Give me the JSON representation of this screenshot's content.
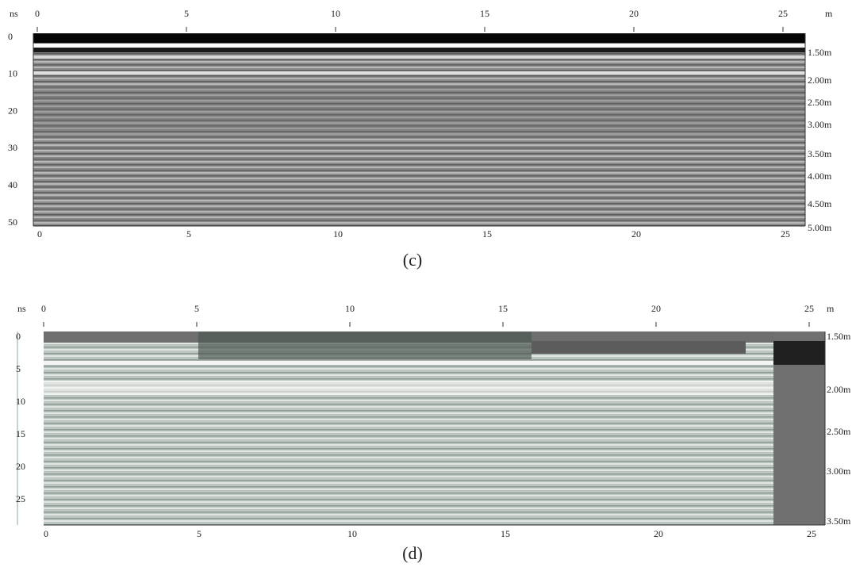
{
  "figures": [
    {
      "caption": "(c)",
      "y_unit": "ns",
      "x_unit": "m",
      "xticks": [
        0,
        5,
        10,
        15,
        20,
        25
      ],
      "yticks": [
        0,
        10,
        20,
        30,
        40,
        50
      ],
      "depth_labels": [
        "1.50m",
        "2.00m",
        "2.50m",
        "3.00m",
        "3.50m",
        "4.00m",
        "4.50m",
        "5.00m"
      ]
    },
    {
      "caption": "(d)",
      "y_unit": "ns",
      "x_unit": "m",
      "xticks": [
        0,
        5,
        10,
        15,
        20,
        25
      ],
      "yticks": [
        0,
        5,
        10,
        15,
        20,
        25
      ],
      "depth_labels": [
        "1.50m",
        "2.00m",
        "2.50m",
        "3.00m",
        "3.50m"
      ]
    }
  ]
}
